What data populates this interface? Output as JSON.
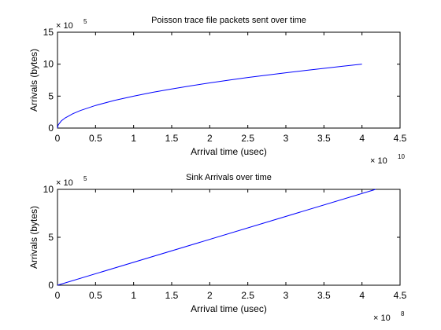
{
  "chart_data": [
    {
      "type": "line",
      "title": "Poisson trace file packets sent over time",
      "xlabel": "Arrival time (usec)",
      "ylabel": "Arrivals (bytes)",
      "x_multiplier": {
        "base": "× 10",
        "exponent": "10"
      },
      "y_multiplier": {
        "base": "× 10",
        "exponent": "5"
      },
      "xlim": [
        0,
        4.5
      ],
      "ylim": [
        0,
        15
      ],
      "xticks": [
        "0",
        "0.5",
        "1",
        "1.5",
        "2",
        "2.5",
        "3",
        "3.5",
        "4",
        "4.5"
      ],
      "yticks": [
        "0",
        "5",
        "10",
        "15"
      ],
      "grid": false,
      "color": "#0000ff",
      "series": [
        {
          "x": [
            0,
            0.01,
            0.05,
            0.1,
            0.2,
            0.3,
            0.5,
            0.75,
            1.0,
            1.25,
            1.5,
            1.75,
            2.0,
            2.25,
            2.5,
            2.75,
            3.0,
            3.25,
            3.5,
            3.75,
            4.0
          ],
          "y": [
            0,
            0.5,
            1.12,
            1.58,
            2.24,
            2.74,
            3.54,
            4.33,
            5.0,
            5.59,
            6.12,
            6.61,
            7.07,
            7.5,
            7.91,
            8.29,
            8.66,
            9.01,
            9.35,
            9.68,
            10.0
          ]
        }
      ]
    },
    {
      "type": "line",
      "title": "Sink Arrivals over time",
      "xlabel": "Arrival time (usec)",
      "ylabel": "Arrivals (bytes)",
      "x_multiplier": {
        "base": "× 10",
        "exponent": "8"
      },
      "y_multiplier": {
        "base": "× 10",
        "exponent": "5"
      },
      "xlim": [
        0,
        4.5
      ],
      "ylim": [
        0,
        10
      ],
      "xticks": [
        "0",
        "0.5",
        "1",
        "1.5",
        "2",
        "2.5",
        "3",
        "3.5",
        "4",
        "4.5"
      ],
      "yticks": [
        "0",
        "5",
        "10"
      ],
      "grid": false,
      "color": "#0000ff",
      "series": [
        {
          "x": [
            0,
            4.18
          ],
          "y": [
            0,
            10
          ]
        }
      ]
    }
  ]
}
